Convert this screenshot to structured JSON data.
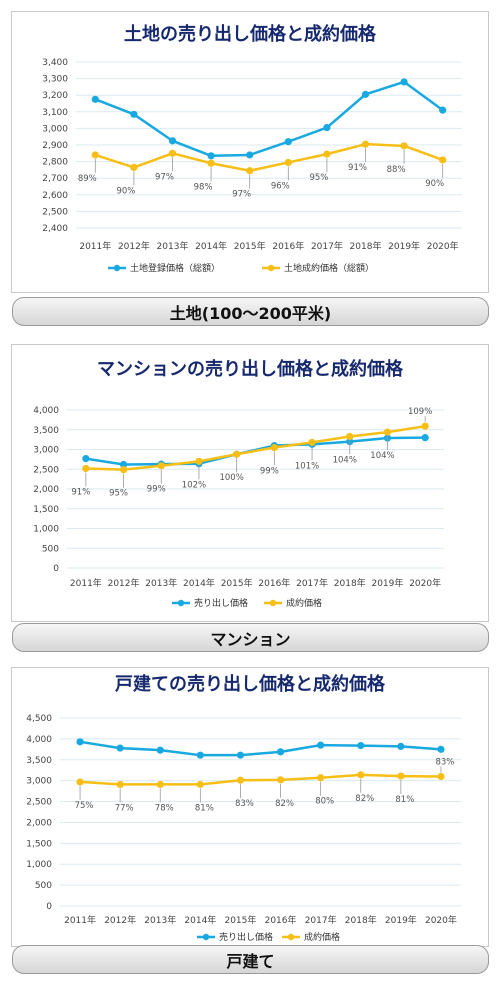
{
  "colors": {
    "series1": "#19a9e0",
    "series2": "#f7be16",
    "title": "#17296e",
    "grid": "#d9eaf2"
  },
  "sections": [
    {
      "label": "土地(100〜200平米)",
      "chart_data": {
        "type": "line",
        "title": "土地の売り出し価格と成約価格",
        "categories": [
          "2011年",
          "2012年",
          "2013年",
          "2014年",
          "2015年",
          "2016年",
          "2017年",
          "2018年",
          "2019年",
          "2020年"
        ],
        "ylim": [
          2400,
          3400
        ],
        "yticks": [
          2400,
          2500,
          2600,
          2700,
          2800,
          2900,
          3000,
          3100,
          3200,
          3300,
          3400
        ],
        "grid": true,
        "legend_position": "bottom",
        "series": [
          {
            "name": "土地登録価格（総額）",
            "values": [
              3175,
              3085,
              2925,
              2835,
              2840,
              2920,
              3005,
              3205,
              3280,
              3110
            ]
          },
          {
            "name": "土地成約価格（総額）",
            "values": [
              2840,
              2765,
              2850,
              2790,
              2745,
              2795,
              2845,
              2905,
              2895,
              2810
            ]
          }
        ],
        "annotations": [
          "89%",
          "90%",
          "97%",
          "98%",
          "97%",
          "96%",
          "95%",
          "91%",
          "88%",
          "90%"
        ]
      }
    },
    {
      "label": "マンション",
      "chart_data": {
        "type": "line",
        "title": "マンションの売り出し価格と成約価格",
        "categories": [
          "2011年",
          "2012年",
          "2013年",
          "2014年",
          "2015年",
          "2016年",
          "2017年",
          "2018年",
          "2019年",
          "2020年"
        ],
        "ylim": [
          0,
          4000
        ],
        "yticks": [
          0,
          500,
          1000,
          1500,
          2000,
          2500,
          3000,
          3500,
          4000
        ],
        "grid": true,
        "legend_position": "bottom",
        "series": [
          {
            "name": "売り出し価格",
            "values": [
              2770,
              2620,
              2630,
              2640,
              2880,
              3100,
              3130,
              3200,
              3290,
              3300
            ]
          },
          {
            "name": "成約価格",
            "values": [
              2520,
              2490,
              2590,
              2700,
              2880,
              3050,
              3180,
              3330,
              3440,
              3590
            ]
          }
        ],
        "annotations": [
          "91%",
          "95%",
          "99%",
          "102%",
          "100%",
          "99%",
          "101%",
          "104%",
          "104%",
          "109%"
        ]
      }
    },
    {
      "label": "戸建て",
      "chart_data": {
        "type": "line",
        "title": "戸建ての売り出し価格と成約価格",
        "categories": [
          "2011年",
          "2012年",
          "2013年",
          "2014年",
          "2015年",
          "2016年",
          "2017年",
          "2018年",
          "2019年",
          "2020年"
        ],
        "ylim": [
          0,
          4500
        ],
        "yticks": [
          0,
          500,
          1000,
          1500,
          2000,
          2500,
          3000,
          3500,
          4000,
          4500
        ],
        "grid": true,
        "legend_position": "bottom",
        "series": [
          {
            "name": "売り出し価格",
            "values": [
              3930,
              3780,
              3730,
              3610,
              3610,
              3690,
              3850,
              3840,
              3820,
              3750
            ]
          },
          {
            "name": "成約価格",
            "values": [
              2970,
              2910,
              2910,
              2910,
              3010,
              3020,
              3070,
              3140,
              3110,
              3100
            ]
          }
        ],
        "annotations": [
          "75%",
          "77%",
          "78%",
          "81%",
          "83%",
          "82%",
          "80%",
          "82%",
          "81%",
          "83%"
        ]
      }
    }
  ]
}
